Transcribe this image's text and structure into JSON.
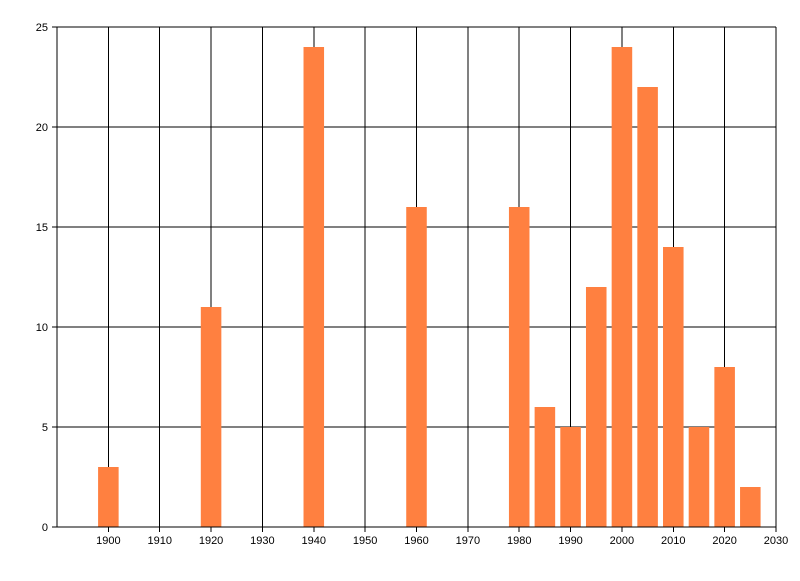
{
  "chart_data": {
    "type": "bar",
    "title": "",
    "xlabel": "",
    "ylabel": "",
    "x": [
      1900,
      1920,
      1940,
      1960,
      1980,
      1985,
      1990,
      1995,
      2000,
      2005,
      2010,
      2015,
      2020,
      2025
    ],
    "values": [
      3,
      11,
      24,
      16,
      16,
      6,
      5,
      12,
      24,
      22,
      14,
      5,
      8,
      2
    ],
    "xlim": [
      1890,
      2030
    ],
    "ylim": [
      0,
      25
    ],
    "xticks": [
      1900,
      1910,
      1920,
      1930,
      1940,
      1950,
      1960,
      1970,
      1980,
      1990,
      2000,
      2010,
      2020,
      2030
    ],
    "yticks": [
      0,
      5,
      10,
      15,
      20,
      25
    ],
    "bar_width_years": 4,
    "grid": true,
    "legend": "none",
    "colors": {
      "bar": "#ff8040",
      "grid": "#000000",
      "axis": "#000000"
    }
  }
}
